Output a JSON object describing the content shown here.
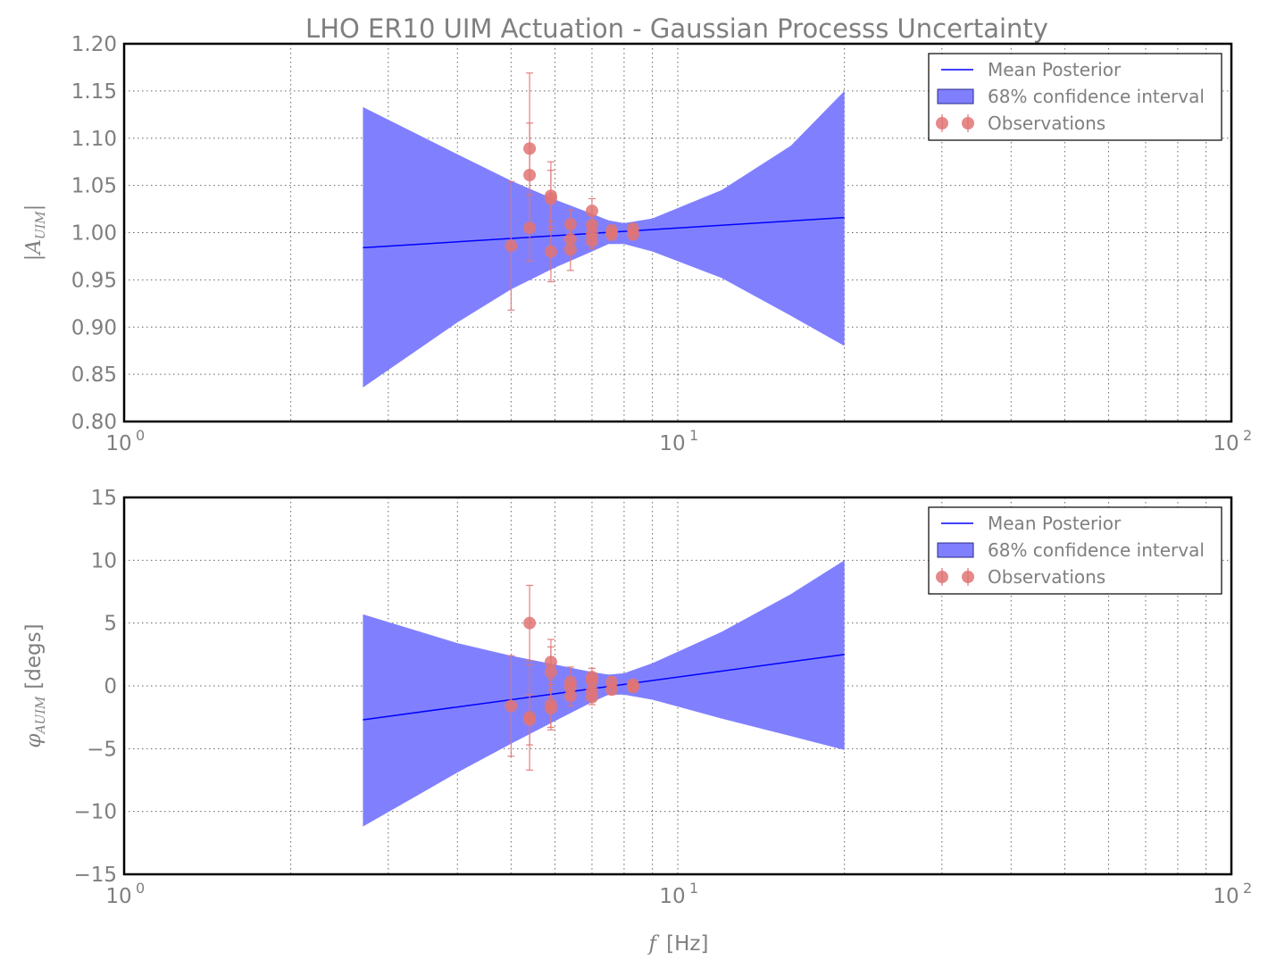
{
  "figure_title": "LHO ER10 UIM Actuation - Gaussian Processs Uncertainty",
  "xlabel": {
    "var": "f",
    "unit": "[Hz]"
  },
  "colors": {
    "mean_line": "#0000ff",
    "band": "#8080ff",
    "observations": "#e07474",
    "text": "#7f7f7f"
  },
  "legend_labels": [
    "Mean Posterior",
    "68% confidence interval",
    "Observations"
  ],
  "chart_data": [
    {
      "type": "line",
      "panel": "magnitude",
      "xscale": "log",
      "xlim": [
        1,
        100
      ],
      "ylim": [
        0.8,
        1.2
      ],
      "xtick_labels": [
        {
          "base": "10",
          "exp": "0"
        },
        {
          "base": "10",
          "exp": "1"
        },
        {
          "base": "10",
          "exp": "2"
        }
      ],
      "ytick_labels": [
        "1.20",
        "1.15",
        "1.10",
        "1.05",
        "1.00",
        "0.95",
        "0.90",
        "0.85",
        "0.80"
      ],
      "ylabel": {
        "main": "|A",
        "sub": "UIM",
        "close": "|"
      },
      "grid": true,
      "legend_position": "top-right",
      "mean_posterior": {
        "x": [
          2.7,
          20
        ],
        "y": [
          0.984,
          1.016
        ]
      },
      "confidence_band_68": {
        "x": [
          2.7,
          4,
          5,
          6,
          7,
          7.5,
          8,
          9,
          12,
          16,
          20
        ],
        "upper": [
          1.133,
          1.083,
          1.055,
          1.035,
          1.02,
          1.013,
          1.01,
          1.015,
          1.045,
          1.092,
          1.15
        ],
        "lower": [
          0.836,
          0.905,
          0.94,
          0.963,
          0.98,
          0.988,
          0.988,
          0.98,
          0.952,
          0.912,
          0.88
        ]
      },
      "observations": [
        {
          "x": 5.0,
          "y": 0.986,
          "err": 0.068
        },
        {
          "x": 5.4,
          "y": 1.089,
          "err": 0.08
        },
        {
          "x": 5.4,
          "y": 1.061,
          "err": 0.055
        },
        {
          "x": 5.4,
          "y": 1.005,
          "err": 0.035
        },
        {
          "x": 5.9,
          "y": 1.039,
          "err": 0.036
        },
        {
          "x": 5.9,
          "y": 1.036,
          "err": 0.03
        },
        {
          "x": 5.9,
          "y": 0.98,
          "err": 0.032
        },
        {
          "x": 6.4,
          "y": 1.009,
          "err": 0.015
        },
        {
          "x": 6.4,
          "y": 0.993,
          "err": 0.012
        },
        {
          "x": 6.4,
          "y": 0.982,
          "err": 0.022
        },
        {
          "x": 7.0,
          "y": 1.023,
          "err": 0.013
        },
        {
          "x": 7.0,
          "y": 1.008,
          "err": 0.01
        },
        {
          "x": 7.0,
          "y": 0.999,
          "err": 0.008
        },
        {
          "x": 7.0,
          "y": 0.991,
          "err": 0.008
        },
        {
          "x": 7.6,
          "y": 1.002,
          "err": 0.006
        },
        {
          "x": 7.6,
          "y": 0.998,
          "err": 0.006
        },
        {
          "x": 8.3,
          "y": 1.004,
          "err": 0.005
        },
        {
          "x": 8.3,
          "y": 0.998,
          "err": 0.005
        }
      ]
    },
    {
      "type": "line",
      "panel": "phase",
      "xscale": "log",
      "xlim": [
        1,
        100
      ],
      "ylim": [
        -15,
        15
      ],
      "xtick_labels": [
        {
          "base": "10",
          "exp": "0"
        },
        {
          "base": "10",
          "exp": "1"
        },
        {
          "base": "10",
          "exp": "2"
        }
      ],
      "ytick_labels": [
        "15",
        "10",
        "5",
        "0",
        "−5",
        "−10",
        "−15"
      ],
      "ylabel": {
        "main": "φ",
        "sub": "AUIM",
        "unit": "[degs]"
      },
      "grid": true,
      "legend_position": "top-right",
      "mean_posterior": {
        "x": [
          2.7,
          20
        ],
        "y": [
          -2.7,
          2.5
        ]
      },
      "confidence_band_68": {
        "x": [
          2.7,
          4,
          5,
          6,
          7,
          7.5,
          8,
          9,
          12,
          16,
          20
        ],
        "upper": [
          5.7,
          3.4,
          2.4,
          1.7,
          1.1,
          0.9,
          1.0,
          1.8,
          4.3,
          7.3,
          10.0
        ],
        "lower": [
          -11.2,
          -6.9,
          -4.6,
          -2.8,
          -1.3,
          -0.7,
          -0.7,
          -1.1,
          -2.6,
          -4.0,
          -5.1
        ]
      },
      "observations": [
        {
          "x": 5.0,
          "y": -1.6,
          "err": 4.0
        },
        {
          "x": 5.4,
          "y": 5.0,
          "err": 3.0
        },
        {
          "x": 5.4,
          "y": -2.5,
          "err": 4.2
        },
        {
          "x": 5.4,
          "y": -2.7,
          "err": 2.0
        },
        {
          "x": 5.9,
          "y": 1.9,
          "err": 1.8
        },
        {
          "x": 5.9,
          "y": 1.1,
          "err": 2.0
        },
        {
          "x": 5.9,
          "y": -1.5,
          "err": 2.0
        },
        {
          "x": 5.9,
          "y": -1.8,
          "err": 1.5
        },
        {
          "x": 6.4,
          "y": 0.3,
          "err": 1.2
        },
        {
          "x": 6.4,
          "y": -0.1,
          "err": 0.8
        },
        {
          "x": 6.4,
          "y": -0.8,
          "err": 0.8
        },
        {
          "x": 7.0,
          "y": 0.7,
          "err": 0.7
        },
        {
          "x": 7.0,
          "y": 0.4,
          "err": 0.6
        },
        {
          "x": 7.0,
          "y": -0.4,
          "err": 0.6
        },
        {
          "x": 7.0,
          "y": -0.9,
          "err": 0.6
        },
        {
          "x": 7.6,
          "y": 0.3,
          "err": 0.4
        },
        {
          "x": 7.6,
          "y": -0.3,
          "err": 0.4
        },
        {
          "x": 8.3,
          "y": 0.1,
          "err": 0.3
        },
        {
          "x": 8.3,
          "y": -0.1,
          "err": 0.3
        }
      ]
    }
  ]
}
